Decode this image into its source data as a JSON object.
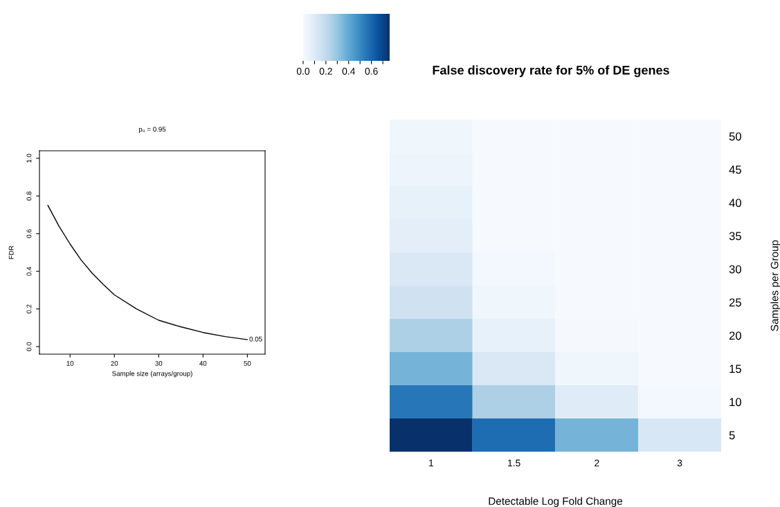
{
  "chart_data": [
    {
      "type": "line",
      "title": "p₀ = 0.95",
      "xlabel": "Sample size (arrays/group)",
      "ylabel": "FDR",
      "x": [
        5,
        7.5,
        10,
        12.5,
        15,
        17.5,
        20,
        25,
        30,
        35,
        40,
        45,
        50
      ],
      "series": [
        {
          "color": "#000000",
          "values": [
            0.75,
            0.64,
            0.545,
            0.46,
            0.39,
            0.33,
            0.275,
            0.2,
            0.14,
            0.105,
            0.075,
            0.053,
            0.037
          ]
        }
      ],
      "xlim": [
        3.1,
        54
      ],
      "xticks": [
        10,
        20,
        30,
        40,
        50
      ],
      "ylim": [
        -0.04,
        1.04
      ],
      "yticks": [
        {
          "value": 0,
          "label": "0.0"
        },
        0.2,
        0.4,
        0.6,
        0.8,
        {
          "value": 1,
          "label": "1.0"
        }
      ],
      "grid": false,
      "legend": false,
      "marker": "none",
      "line_style": "solid",
      "annotations": [
        {
          "text": "0.05",
          "x": 50,
          "y": 0.037
        }
      ]
    },
    {
      "type": "heatmap",
      "title": "False discovery rate for 5% of DE genes",
      "xlabel": "Detectable Log Fold Change",
      "ylabel": "Samples per Group",
      "categories": [
        "1",
        "1.5",
        "2",
        "3"
      ],
      "y_categories": [
        "50",
        "45",
        "40",
        "35",
        "30",
        "25",
        "20",
        "15",
        "10",
        "5"
      ],
      "cells": [
        [
          0.03,
          0.005,
          0.005,
          0.005
        ],
        [
          0.04,
          0.005,
          0.005,
          0.005
        ],
        [
          0.06,
          0.005,
          0.005,
          0.005
        ],
        [
          0.08,
          0.005,
          0.005,
          0.005
        ],
        [
          0.11,
          0.015,
          0.005,
          0.005
        ],
        [
          0.15,
          0.03,
          0.005,
          0.005
        ],
        [
          0.25,
          0.06,
          0.01,
          0.005
        ],
        [
          0.36,
          0.11,
          0.03,
          0.005
        ],
        [
          0.55,
          0.25,
          0.09,
          0.015
        ],
        [
          0.76,
          0.58,
          0.36,
          0.12
        ]
      ],
      "clim": [
        0,
        0.76
      ],
      "cticks": [
        {
          "value": 0,
          "label": "0.0"
        },
        0.2,
        0.4,
        0.6,
        {
          "value": 0.1,
          "label": null
        },
        {
          "value": 0.3,
          "label": null
        },
        {
          "value": 0.5,
          "label": null
        },
        {
          "value": 0.7,
          "label": null
        }
      ]
    }
  ]
}
